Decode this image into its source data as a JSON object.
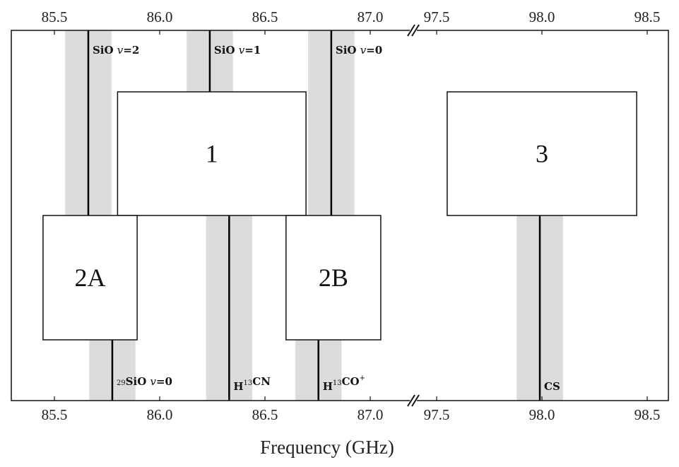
{
  "xlabel": "Frequency (GHz)",
  "axis": {
    "broken": true,
    "segments": [
      {
        "range": [
          85.295,
          87.205
        ],
        "ticks": [
          "85.5",
          "86.0",
          "86.5",
          "87.0"
        ]
      },
      {
        "range": [
          97.389,
          98.6
        ],
        "ticks": [
          "97.5",
          "98.0",
          "98.5"
        ]
      }
    ]
  },
  "band_color": "#dcdcdc",
  "band_halfwidth_ghz": 0.11,
  "boxes": [
    {
      "label": "1",
      "range": [
        85.8,
        86.695
      ],
      "tier": "upper"
    },
    {
      "label": "2A",
      "range": [
        85.446,
        85.893
      ],
      "tier": "lower"
    },
    {
      "label": "2B",
      "range": [
        86.6,
        87.05
      ],
      "tier": "lower"
    },
    {
      "label": "3",
      "range": [
        97.55,
        98.45
      ],
      "tier": "upper"
    }
  ],
  "lines": [
    {
      "freq": 85.661,
      "side": "top",
      "label": [
        {
          "t": "SiO "
        },
        {
          "t": "v",
          "italic": true
        },
        {
          "t": "=2"
        }
      ]
    },
    {
      "freq": 86.238,
      "side": "top",
      "label": [
        {
          "t": "SiO "
        },
        {
          "t": "v",
          "italic": true
        },
        {
          "t": "=1"
        }
      ]
    },
    {
      "freq": 86.815,
      "side": "top",
      "label": [
        {
          "t": "SiO "
        },
        {
          "t": "v",
          "italic": true
        },
        {
          "t": "=0"
        }
      ]
    },
    {
      "freq": 85.775,
      "side": "bottom",
      "label": [
        {
          "t": "29",
          "sup": true
        },
        {
          "t": "SiO "
        },
        {
          "t": "v",
          "italic": true
        },
        {
          "t": "=0"
        }
      ]
    },
    {
      "freq": 86.33,
      "side": "bottom",
      "label": [
        {
          "t": "H"
        },
        {
          "t": "13",
          "sup": true
        },
        {
          "t": "CN"
        }
      ]
    },
    {
      "freq": 86.754,
      "side": "bottom",
      "label": [
        {
          "t": "H"
        },
        {
          "t": "13",
          "sup": true
        },
        {
          "t": "CO"
        },
        {
          "t": "+",
          "sup": true
        }
      ]
    },
    {
      "freq": 97.99,
      "side": "bottom",
      "label": [
        {
          "t": "CS"
        }
      ]
    }
  ]
}
